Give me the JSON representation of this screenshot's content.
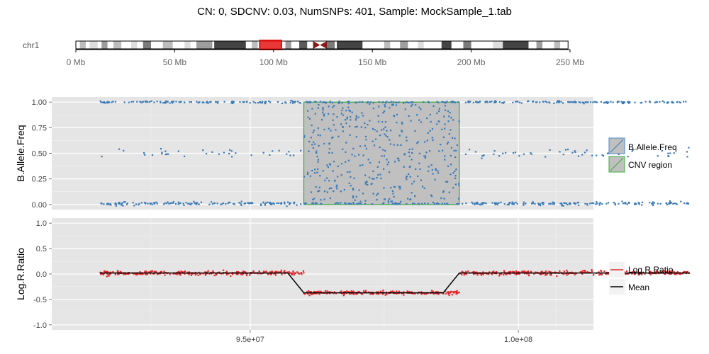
{
  "title": "CN: 0, SDCNV: 0.03, NumSNPs: 401, Sample: MockSample_1.tab",
  "ideogram": {
    "label": "chr1",
    "ticks": [
      "0 Mb",
      "50 Mb",
      "100 Mb",
      "150 Mb",
      "200 Mb",
      "250 Mb"
    ],
    "tick_values_mb": [
      0,
      50,
      100,
      150,
      200,
      250
    ],
    "length_mb": 249,
    "highlight_mb": [
      93,
      104
    ],
    "centromere_mb": [
      120,
      127
    ],
    "bands": [
      {
        "start": 2,
        "end": 5,
        "shade": "#bdbdbd"
      },
      {
        "start": 7,
        "end": 11,
        "shade": "#dddddd"
      },
      {
        "start": 13,
        "end": 16,
        "shade": "#9e9e9e"
      },
      {
        "start": 19,
        "end": 23,
        "shade": "#bdbdbd"
      },
      {
        "start": 28,
        "end": 31,
        "shade": "#dddddd"
      },
      {
        "start": 34,
        "end": 38,
        "shade": "#7a7a7a"
      },
      {
        "start": 44,
        "end": 49,
        "shade": "#bdbdbd"
      },
      {
        "start": 55,
        "end": 58,
        "shade": "#dddddd"
      },
      {
        "start": 61,
        "end": 69,
        "shade": "#9e9e9e"
      },
      {
        "start": 70,
        "end": 86,
        "shade": "#444444"
      },
      {
        "start": 89,
        "end": 92,
        "shade": "#bdbdbd"
      },
      {
        "start": 106,
        "end": 109,
        "shade": "#9e9e9e"
      },
      {
        "start": 113,
        "end": 117,
        "shade": "#5a5a5a"
      },
      {
        "start": 127,
        "end": 131,
        "shade": "#7a7a7a"
      },
      {
        "start": 132,
        "end": 145,
        "shade": "#444444"
      },
      {
        "start": 156,
        "end": 159,
        "shade": "#bdbdbd"
      },
      {
        "start": 164,
        "end": 168,
        "shade": "#9e9e9e"
      },
      {
        "start": 173,
        "end": 176,
        "shade": "#dddddd"
      },
      {
        "start": 185,
        "end": 190,
        "shade": "#444444"
      },
      {
        "start": 196,
        "end": 200,
        "shade": "#7a7a7a"
      },
      {
        "start": 211,
        "end": 216,
        "shade": "#dddddd"
      },
      {
        "start": 216,
        "end": 229,
        "shade": "#444444"
      },
      {
        "start": 233,
        "end": 236,
        "shade": "#9e9e9e"
      },
      {
        "start": 242,
        "end": 245,
        "shade": "#bdbdbd"
      }
    ]
  },
  "chart_data": {
    "type": "scatter",
    "x_range": [
      91300000,
      101400000
    ],
    "x_ticks": [
      95000000,
      100000000
    ],
    "x_tick_labels": [
      "9.5e+07",
      "1.0e+08"
    ],
    "x_data_range": [
      92200000,
      103200000
    ],
    "cnv_region": {
      "start": 96000000,
      "end": 98900000
    },
    "colors": {
      "baf": "#3a7ab8",
      "lrr": "#e0282c",
      "mean": "#000000",
      "cnv_fill": "#c0c0c0",
      "cnv_border": "#3aab3a",
      "panel_bg": "#e5e5e5"
    },
    "panels": [
      {
        "ylabel": "B.Allele.Freq",
        "ylim": [
          -0.05,
          1.05
        ],
        "yticks": [
          0,
          0.25,
          0.5,
          0.75,
          1
        ],
        "ytick_labels": [
          "0.00",
          "0.25",
          "0.50",
          "0.75",
          "1.00"
        ],
        "series": [
          {
            "name": "B.Allele.Freq",
            "bands": [
              {
                "y": 1.0,
                "spread": 0.005
              },
              {
                "y": 0.5,
                "spread": 0.02,
                "density": 0.3
              },
              {
                "y": 0.01,
                "spread": 0.008
              }
            ]
          }
        ]
      },
      {
        "ylabel": "Log.R.Ratio",
        "ylim": [
          -1.1,
          1.1
        ],
        "yticks": [
          -1,
          -0.5,
          0,
          0.5,
          1
        ],
        "ytick_labels": [
          "-1.0",
          "-0.5",
          "0.0",
          "0.5",
          "1.0"
        ],
        "series": [
          {
            "name": "Log.R.Ratio",
            "segments": [
              {
                "start": 92200000,
                "end": 96000000,
                "mean": 0.02,
                "spread": 0.02
              },
              {
                "start": 96000000,
                "end": 98900000,
                "mean": -0.37,
                "spread": 0.02
              },
              {
                "start": 98900000,
                "end": 103200000,
                "mean": 0.02,
                "spread": 0.02
              }
            ]
          },
          {
            "name": "Mean",
            "line": [
              [
                92200000,
                0.02
              ],
              [
                95700000,
                0.02
              ],
              [
                96000000,
                -0.37
              ],
              [
                98600000,
                -0.37
              ],
              [
                98900000,
                0.02
              ],
              [
                103200000,
                0.02
              ]
            ]
          }
        ]
      }
    ],
    "legends": [
      {
        "entries": [
          "B.Allele.Freq",
          "CNV region"
        ]
      },
      {
        "entries": [
          "Log.R.Ratio",
          "Mean"
        ]
      }
    ]
  }
}
